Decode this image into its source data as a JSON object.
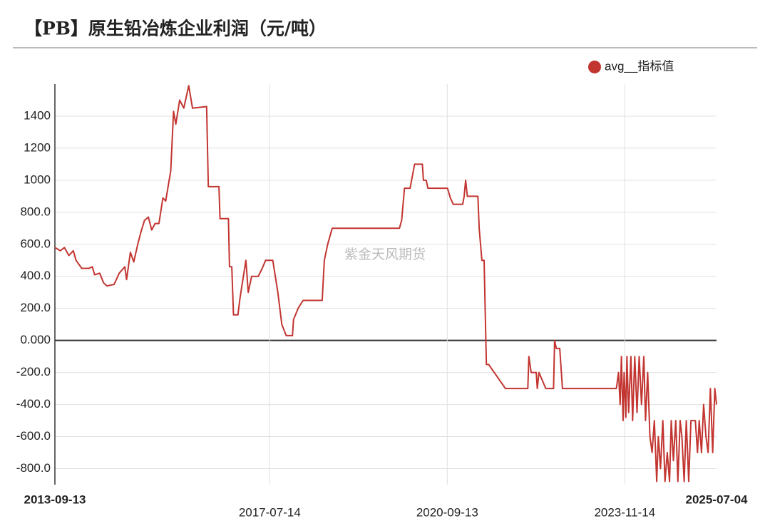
{
  "chart_data": {
    "type": "line",
    "title": "【PB】原生铅冶炼企业利润（元/吨）",
    "watermark": "紫金天风期货",
    "xlim": [
      "2013-09-13",
      "2025-07-04"
    ],
    "xticks": [
      "2013-09-13",
      "2017-07-14",
      "2020-09-13",
      "2023-11-14",
      "2025-07-04"
    ],
    "ylim": [
      -900,
      1600
    ],
    "yticks": [
      {
        "value": -800,
        "label": "-800.0"
      },
      {
        "value": -600,
        "label": "-600.0"
      },
      {
        "value": -400,
        "label": "-400.0"
      },
      {
        "value": -200,
        "label": "-200.0"
      },
      {
        "value": 0,
        "label": "0.000"
      },
      {
        "value": 200,
        "label": "200.0"
      },
      {
        "value": 400,
        "label": "400.0"
      },
      {
        "value": 600,
        "label": "600.0"
      },
      {
        "value": 800,
        "label": "800.0"
      },
      1000,
      1200,
      1400
    ],
    "grid": true,
    "legend": "top-right",
    "x": [
      "2013-09-13",
      "2013-10-19",
      "2013-11-14",
      "2013-12-13",
      "2014-01-11",
      "2014-01-29",
      "2014-03-07",
      "2014-04-23",
      "2014-05-15",
      "2014-05-30",
      "2014-07-02",
      "2014-07-27",
      "2014-08-18",
      "2014-10-04",
      "2014-11-06",
      "2014-12-13",
      "2014-12-24",
      "2015-01-18",
      "2015-02-09",
      "2015-03-07",
      "2015-03-29",
      "2015-04-20",
      "2015-05-15",
      "2015-06-06",
      "2015-06-28",
      "2015-07-23",
      "2015-08-18",
      "2015-09-05",
      "2015-10-08",
      "2015-10-26",
      "2015-11-10",
      "2015-12-05",
      "2016-01-01",
      "2016-02-02",
      "2016-02-27",
      "2016-05-29",
      "2016-06-09",
      "2016-08-17",
      "2016-08-24",
      "2016-10-18",
      "2016-10-25",
      "2016-11-09",
      "2016-11-20",
      "2016-12-19",
      "2017-01-01",
      "2017-01-15",
      "2017-02-09",
      "2017-02-24",
      "2017-03-18",
      "2017-04-30",
      "2017-05-26",
      "2017-06-17",
      "2017-08-03",
      "2017-09-05",
      "2017-10-01",
      "2017-10-30",
      "2017-12-09",
      "2017-12-16",
      "2018-01-15",
      "2018-02-16",
      "2018-06-21",
      "2018-07-05",
      "2018-07-27",
      "2018-08-25",
      "2019-11-06",
      "2019-11-21",
      "2019-12-09",
      "2020-01-15",
      "2020-02-13",
      "2020-04-04",
      "2020-04-11",
      "2020-04-29",
      "2020-05-10",
      "2020-09-15",
      "2020-10-03",
      "2020-10-22",
      "2020-12-23",
      "2021-01-01",
      "2021-01-11",
      "2021-01-22",
      "2021-04-01",
      "2021-04-09",
      "2021-04-27",
      "2021-05-11",
      "2021-05-26",
      "2021-06-10",
      "2021-09-27",
      "2022-02-20",
      "2022-02-27",
      "2022-03-14",
      "2022-04-16",
      "2022-04-23",
      "2022-05-04",
      "2022-06-17",
      "2022-08-07",
      "2022-08-14",
      "2022-08-25",
      "2022-09-16",
      "2022-10-04",
      "2023-09-20",
      "2023-10-04",
      "2023-10-15",
      "2023-10-23",
      "2023-11-03",
      "2023-11-10",
      "2023-11-21",
      "2023-11-28",
      "2023-12-09",
      "2023-12-24",
      "2024-01-04",
      "2024-01-18",
      "2024-02-02",
      "2024-02-16",
      "2024-03-02",
      "2024-03-17",
      "2024-03-28",
      "2024-04-11",
      "2024-04-26",
      "2024-05-10",
      "2024-05-25",
      "2024-06-09",
      "2024-06-20",
      "2024-07-04",
      "2024-07-19",
      "2024-08-02",
      "2024-08-17",
      "2024-09-01",
      "2024-09-12",
      "2024-09-26",
      "2024-10-11",
      "2024-10-25",
      "2024-11-09",
      "2024-11-20",
      "2024-12-05",
      "2024-12-19",
      "2025-01-04",
      "2025-01-18",
      "2025-02-16",
      "2025-03-02",
      "2025-03-13",
      "2025-03-28",
      "2025-04-11",
      "2025-04-26",
      "2025-05-10",
      "2025-05-25",
      "2025-06-09",
      "2025-06-23",
      "2025-07-04"
    ],
    "series": [
      {
        "name": "avg__指标值",
        "color": "#c23531",
        "values": [
          580,
          560,
          580,
          530,
          560,
          500,
          450,
          450,
          460,
          410,
          420,
          360,
          340,
          350,
          420,
          460,
          380,
          550,
          490,
          600,
          680,
          750,
          770,
          690,
          730,
          730,
          890,
          870,
          1060,
          1430,
          1350,
          1500,
          1450,
          1590,
          1450,
          1460,
          960,
          960,
          760,
          760,
          460,
          460,
          160,
          160,
          260,
          350,
          500,
          300,
          400,
          400,
          450,
          500,
          500,
          300,
          100,
          30,
          30,
          130,
          200,
          250,
          250,
          500,
          600,
          700,
          700,
          750,
          950,
          950,
          1100,
          1100,
          1000,
          1000,
          950,
          950,
          890,
          850,
          850,
          900,
          1000,
          900,
          900,
          700,
          500,
          500,
          -150,
          -150,
          -300,
          -300,
          -100,
          -200,
          -200,
          -300,
          -200,
          -300,
          -300,
          0,
          -50,
          -50,
          -300,
          -300,
          -200,
          -400,
          -100,
          -500,
          -200,
          -480,
          -100,
          -450,
          -100,
          -500,
          -100,
          -450,
          -100,
          -400,
          -100,
          -500,
          -200,
          -600,
          -700,
          -500,
          -880,
          -600,
          -800,
          -500,
          -880,
          -700,
          -880,
          -500,
          -750,
          -500,
          -880,
          -500,
          -600,
          -880,
          -500,
          -880,
          -500,
          -500,
          -700,
          -500,
          -700,
          -400,
          -600,
          -700,
          -300,
          -700,
          -300,
          -400
        ]
      }
    ]
  }
}
